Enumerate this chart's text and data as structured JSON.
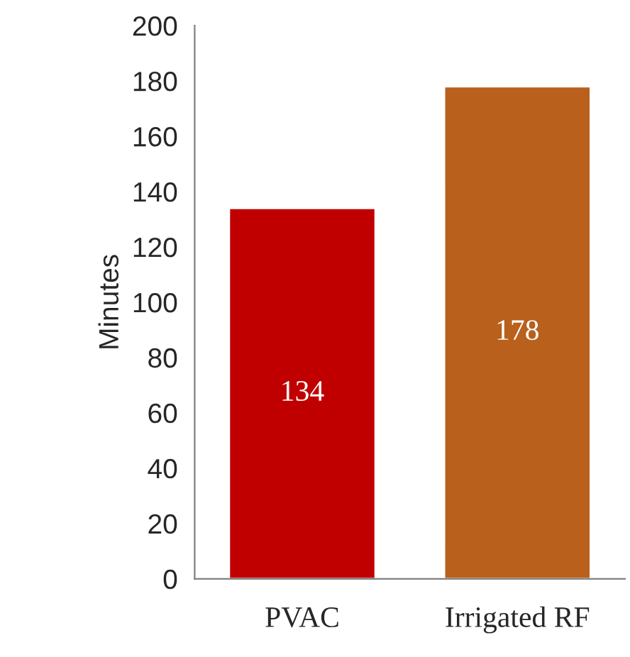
{
  "chart_data": {
    "type": "bar",
    "ylabel": "Minutes",
    "categories": [
      "PVAC",
      "Irrigated RF"
    ],
    "values": [
      134,
      178
    ],
    "colors": [
      "#c00000",
      "#b8601c"
    ],
    "ylim": [
      0,
      200
    ],
    "yticks": [
      0,
      20,
      40,
      60,
      80,
      100,
      120,
      140,
      160,
      180,
      200
    ],
    "data_labels": true,
    "grid": false,
    "legend": false
  }
}
